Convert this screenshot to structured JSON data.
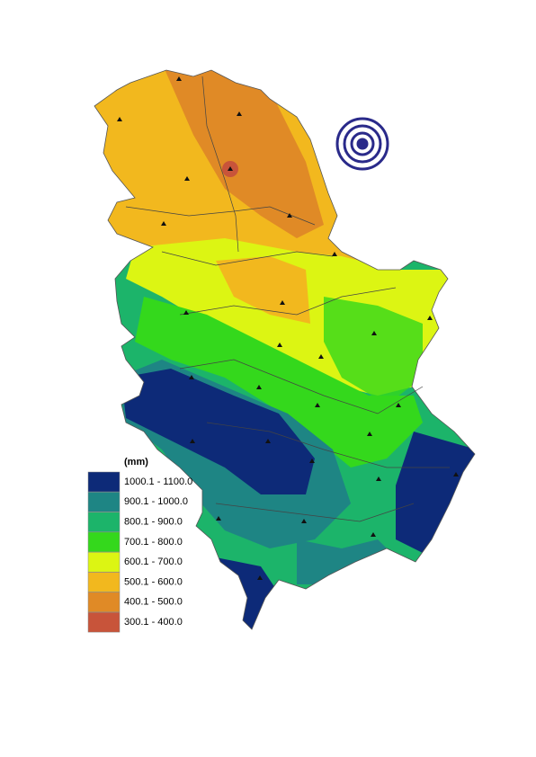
{
  "legend": {
    "unit": "(mm)",
    "items": [
      {
        "label": "1000.1 - 1100.0",
        "color": "#0d2a78"
      },
      {
        "label": "900.1 - 1000.0",
        "color": "#1e8584"
      },
      {
        "label": "800.1 - 900.0",
        "color": "#1cb46a"
      },
      {
        "label": "700.1 - 800.0",
        "color": "#34d81c"
      },
      {
        "label": "600.1 - 700.0",
        "color": "#dcf513"
      },
      {
        "label": "500.1 - 600.0",
        "color": "#f2b81e"
      },
      {
        "label": "400.1 - 500.0",
        "color": "#e08a26"
      },
      {
        "label": "300.1 - 400.0",
        "color": "#c8543a"
      }
    ]
  }
}
